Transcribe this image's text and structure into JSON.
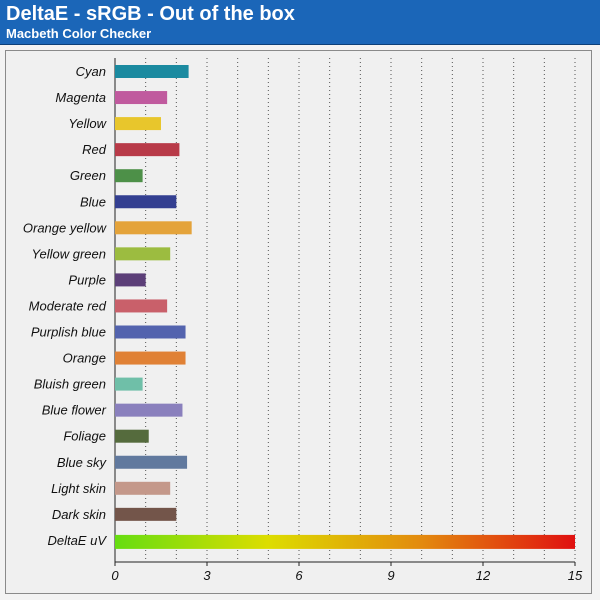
{
  "header": {
    "title": "DeltaE - sRGB - Out of the box",
    "subtitle": "Macbeth Color Checker",
    "background": "#1b66b8"
  },
  "chart_data": {
    "type": "bar",
    "orientation": "horizontal",
    "title": "DeltaE - sRGB - Out of the box",
    "subtitle": "Macbeth Color Checker",
    "xlim": [
      0,
      15
    ],
    "xticks": [
      0,
      3,
      6,
      9,
      12,
      15
    ],
    "grid": "vertical dotted",
    "categories": [
      "Cyan",
      "Magenta",
      "Yellow",
      "Red",
      "Green",
      "Blue",
      "Orange yellow",
      "Yellow green",
      "Purple",
      "Moderate red",
      "Purplish blue",
      "Orange",
      "Bluish green",
      "Blue flower",
      "Foliage",
      "Blue sky",
      "Light skin",
      "Dark skin",
      "DeltaE uV"
    ],
    "values": [
      2.4,
      1.7,
      1.5,
      2.1,
      0.9,
      2.0,
      2.5,
      1.8,
      1.0,
      1.7,
      2.3,
      2.3,
      0.9,
      2.2,
      1.1,
      2.35,
      1.8,
      2.0,
      15
    ],
    "colors": [
      "#1b8aa0",
      "#c05a9e",
      "#e8c62c",
      "#b83a48",
      "#4d9048",
      "#333f91",
      "#e4a33a",
      "#9cbc40",
      "#5c3f78",
      "#c9606a",
      "#5363ae",
      "#e08135",
      "#6fbfa8",
      "#8a80bd",
      "#556b3d",
      "#61799e",
      "#c4988a",
      "#73554a",
      "gradient"
    ],
    "gradient_stops": [
      "#66dd11",
      "#dddd00",
      "#e38a0e",
      "#e01010"
    ]
  }
}
